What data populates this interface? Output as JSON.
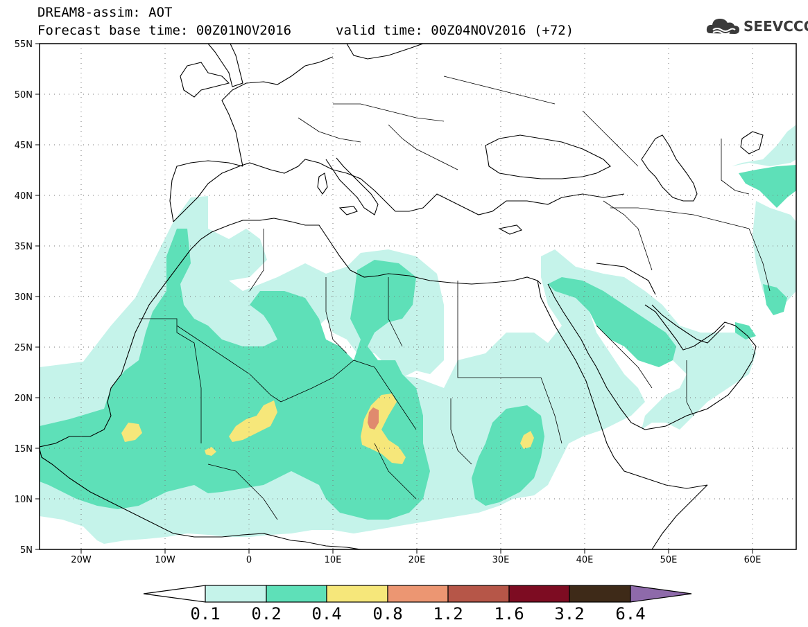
{
  "header": {
    "line1": "DREAM8-assim: AOT",
    "line2": "Forecast base time: 00Z01NOV2016",
    "valid": "valid time: 00Z04NOV2016 (+72)",
    "logo_text": "SEEVCCC"
  },
  "map": {
    "lat_labels": [
      "55N",
      "50N",
      "45N",
      "40N",
      "35N",
      "30N",
      "25N",
      "20N",
      "15N",
      "10N",
      "5N"
    ],
    "lon_labels": [
      "20W",
      "10W",
      "0",
      "10E",
      "20E",
      "30E",
      "40E",
      "50E",
      "60E"
    ]
  },
  "legend": {
    "levels": [
      "0.1",
      "0.2",
      "0.4",
      "0.8",
      "1.2",
      "1.6",
      "3.2",
      "6.4"
    ],
    "colors": [
      "#ffffff",
      "#c5f3ea",
      "#5ee0b8",
      "#f6e77a",
      "#ec9672",
      "#b65648",
      "#7d0c22",
      "#3e2a18",
      "#8e6aaa"
    ]
  },
  "colors": {
    "c01": "#c5f3ea",
    "c02": "#5ee0b8",
    "c04": "#f6e77a",
    "c08": "#ec9672",
    "c12": "#d97e62"
  }
}
